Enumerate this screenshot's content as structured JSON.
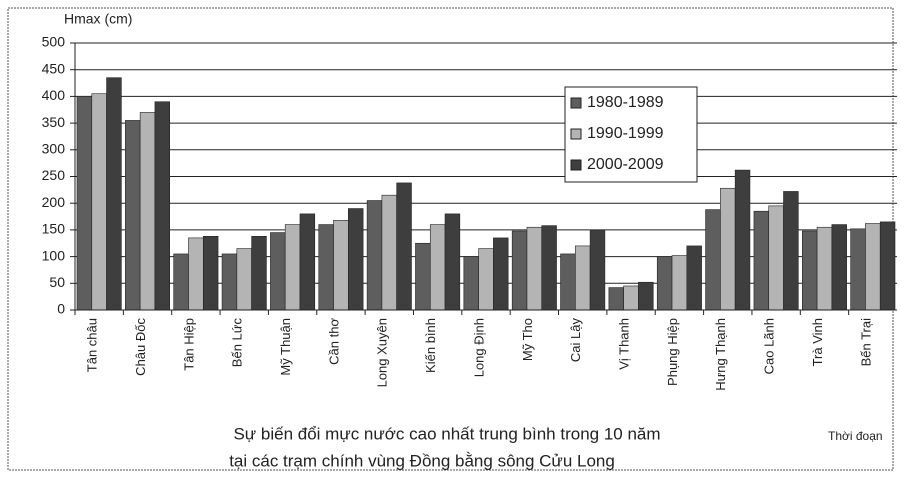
{
  "chart_data": {
    "type": "bar",
    "y_label": "Hmax (cm)",
    "x_label": "Thời đoạn",
    "title": [
      "Sự biến đổi mực nước cao nhất trung bình trong 10 năm",
      "tại các trạm chính vùng Đồng bằng sông Cửu Long"
    ],
    "categories": [
      "Tân châu",
      "Châu Đốc",
      "Tân Hiệp",
      "Bến Lức",
      "Mỹ Thuận",
      "Cần thơ",
      "Long Xuyên",
      "Kiến bình",
      "Long Định",
      "Mỹ Tho",
      "Cai Lậy",
      "Vị Thanh",
      "Phụng Hiệp",
      "Hưng Thạnh",
      "Cao Lãnh",
      "Trà Vinh",
      "Bến Trại"
    ],
    "series": [
      {
        "name": "1980-1989",
        "color": "#5e5e5e",
        "values": [
          400,
          355,
          105,
          105,
          145,
          160,
          205,
          125,
          100,
          148,
          105,
          42,
          100,
          188,
          185,
          148,
          152
        ]
      },
      {
        "name": "1990-1999",
        "color": "#b4b4b4",
        "values": [
          405,
          370,
          135,
          115,
          160,
          168,
          215,
          160,
          115,
          155,
          120,
          45,
          102,
          228,
          195,
          155,
          162
        ]
      },
      {
        "name": "2000-2009",
        "color": "#3e3e3e",
        "values": [
          435,
          390,
          138,
          138,
          180,
          190,
          238,
          180,
          135,
          158,
          150,
          52,
          120,
          262,
          222,
          160,
          165
        ]
      }
    ],
    "ylim": [
      0,
      500
    ],
    "yticks": [
      0,
      50,
      100,
      150,
      200,
      250,
      300,
      350,
      400,
      450,
      500
    ],
    "grid": true
  }
}
